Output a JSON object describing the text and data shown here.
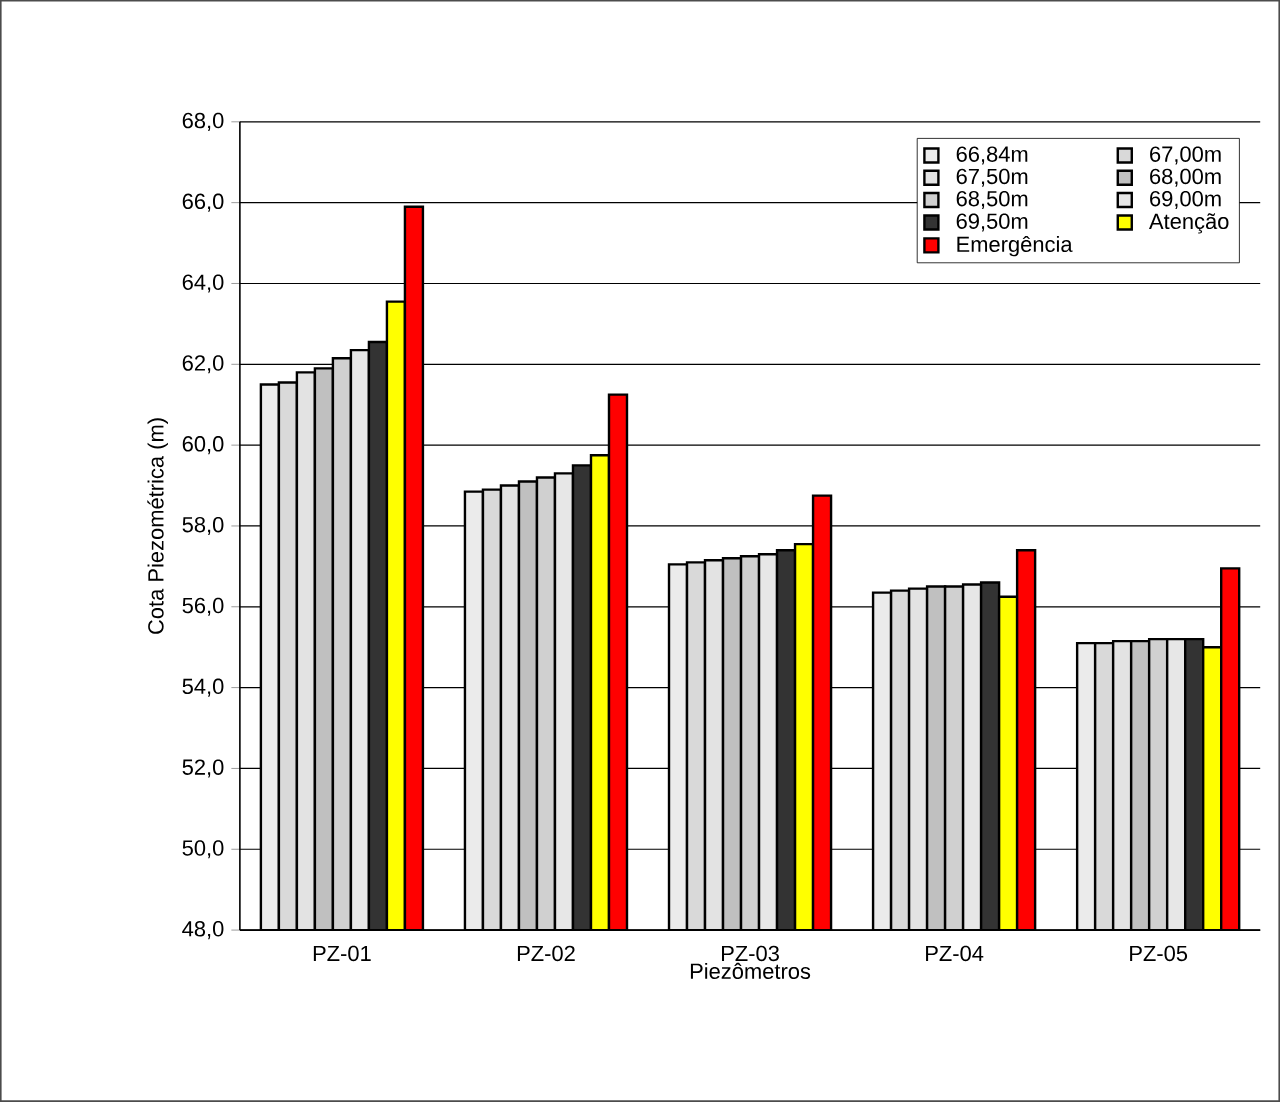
{
  "chart_data": {
    "type": "bar",
    "xlabel": "Piezômetros",
    "ylabel": "Cota Piezométrica (m)",
    "categories": [
      "PZ-01",
      "PZ-02",
      "PZ-03",
      "PZ-04",
      "PZ-05"
    ],
    "series": [
      {
        "name": "66,84m",
        "color": "#ebebeb",
        "values": [
          61.5,
          58.85,
          57.05,
          56.35,
          55.1
        ]
      },
      {
        "name": "67,00m",
        "color": "#d9d9d9",
        "values": [
          61.55,
          58.9,
          57.1,
          56.4,
          55.1
        ]
      },
      {
        "name": "67,50m",
        "color": "#e3e3e3",
        "values": [
          61.8,
          59.0,
          57.15,
          56.45,
          55.15
        ]
      },
      {
        "name": "68,00m",
        "color": "#c0c0c0",
        "values": [
          61.9,
          59.1,
          57.2,
          56.5,
          55.15
        ]
      },
      {
        "name": "68,50m",
        "color": "#d0d0d0",
        "values": [
          62.15,
          59.2,
          57.25,
          56.5,
          55.2
        ]
      },
      {
        "name": "69,00m",
        "color": "#e7e7e7",
        "values": [
          62.35,
          59.3,
          57.3,
          56.55,
          55.2
        ]
      },
      {
        "name": "69,50m",
        "color": "#333333",
        "values": [
          62.55,
          59.5,
          57.4,
          56.6,
          55.2
        ]
      },
      {
        "name": "Atenção",
        "color": "#ffff00",
        "values": [
          63.55,
          59.75,
          57.55,
          56.25,
          55.0
        ]
      },
      {
        "name": "Emergência",
        "color": "#ff0000",
        "values": [
          65.9,
          61.25,
          58.75,
          57.4,
          56.95
        ]
      }
    ],
    "ylim": [
      48,
      68
    ],
    "yticks": [
      {
        "value": 48,
        "label": "48,0"
      },
      {
        "value": 50,
        "label": "50,0"
      },
      {
        "value": 52,
        "label": "52,0"
      },
      {
        "value": 54,
        "label": "54,0"
      },
      {
        "value": 56,
        "label": "56,0"
      },
      {
        "value": 58,
        "label": "58,0"
      },
      {
        "value": 60,
        "label": "60,0"
      },
      {
        "value": 62,
        "label": "62,0"
      },
      {
        "value": 64,
        "label": "64,0"
      },
      {
        "value": 66,
        "label": "66,0"
      },
      {
        "value": 68,
        "label": "68,0"
      }
    ],
    "grid": "y",
    "legend": "top right"
  }
}
